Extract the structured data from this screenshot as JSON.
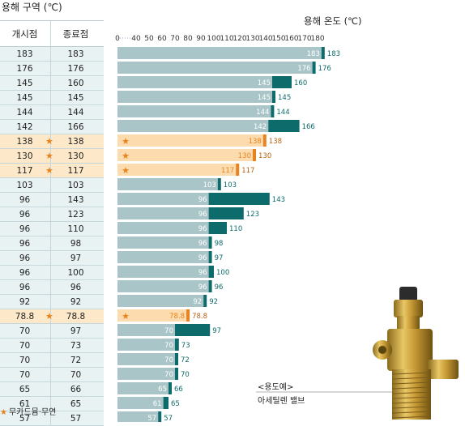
{
  "header": {
    "table_title": "용해 구역 (℃)"
  },
  "table": {
    "col_start": "개시점",
    "col_end": "종료점",
    "rows": [
      {
        "start": "183",
        "end": "183",
        "star": false
      },
      {
        "start": "176",
        "end": "176",
        "star": false
      },
      {
        "start": "145",
        "end": "160",
        "star": false
      },
      {
        "start": "145",
        "end": "145",
        "star": false
      },
      {
        "start": "144",
        "end": "144",
        "star": false
      },
      {
        "start": "142",
        "end": "166",
        "star": false
      },
      {
        "start": "138",
        "end": "138",
        "star": true
      },
      {
        "start": "130",
        "end": "130",
        "star": true
      },
      {
        "start": "117",
        "end": "117",
        "star": true
      },
      {
        "start": "103",
        "end": "103",
        "star": false
      },
      {
        "start": "96",
        "end": "143",
        "star": false
      },
      {
        "start": "96",
        "end": "123",
        "star": false
      },
      {
        "start": "96",
        "end": "110",
        "star": false
      },
      {
        "start": "96",
        "end": "98",
        "star": false
      },
      {
        "start": "96",
        "end": "97",
        "star": false
      },
      {
        "start": "96",
        "end": "100",
        "star": false
      },
      {
        "start": "96",
        "end": "96",
        "star": false
      },
      {
        "start": "92",
        "end": "92",
        "star": false
      },
      {
        "start": "78.8",
        "end": "78.8",
        "star": true
      },
      {
        "start": "70",
        "end": "97",
        "star": false
      },
      {
        "start": "70",
        "end": "73",
        "star": false
      },
      {
        "start": "70",
        "end": "72",
        "star": false
      },
      {
        "start": "70",
        "end": "70",
        "star": false
      },
      {
        "start": "65",
        "end": "66",
        "star": false
      },
      {
        "start": "61",
        "end": "65",
        "star": false
      },
      {
        "start": "57",
        "end": "57",
        "star": false
      }
    ]
  },
  "legend": {
    "star_symbol": "★",
    "text": "무카드뮴·무연"
  },
  "caption": {
    "line1": "<용도예>",
    "line2": "아세틸렌 밸브"
  },
  "colors": {
    "bar_normal": "#a9c5c8",
    "bar_highlight": "#fcdcae",
    "range_normal": "#0e6b6b",
    "range_highlight": "#e8831e",
    "star": "#e8831e"
  },
  "chart_data": {
    "type": "bar",
    "orientation": "horizontal",
    "title": "용해 온도 (℃)",
    "x_ticks": [
      "0",
      "40",
      "50",
      "60",
      "70",
      "80",
      "90",
      "100",
      "110",
      "120",
      "130",
      "140",
      "150",
      "160",
      "170",
      "180"
    ],
    "series": [
      {
        "start": 183,
        "end": 183,
        "start_label": "183",
        "end_label": "183",
        "star": false
      },
      {
        "start": 176,
        "end": 176,
        "start_label": "176",
        "end_label": "176",
        "star": false
      },
      {
        "start": 145,
        "end": 160,
        "start_label": "145",
        "end_label": "160",
        "star": false
      },
      {
        "start": 145,
        "end": 145,
        "start_label": "145",
        "end_label": "145",
        "star": false
      },
      {
        "start": 144,
        "end": 144,
        "start_label": "144",
        "end_label": "144",
        "star": false
      },
      {
        "start": 142,
        "end": 166,
        "start_label": "142",
        "end_label": "166",
        "star": false
      },
      {
        "start": 138,
        "end": 138,
        "start_label": "138",
        "end_label": "138",
        "star": true
      },
      {
        "start": 130,
        "end": 130,
        "start_label": "130",
        "end_label": "130",
        "star": true
      },
      {
        "start": 117,
        "end": 117,
        "start_label": "117",
        "end_label": "117",
        "star": true
      },
      {
        "start": 103,
        "end": 103,
        "start_label": "103",
        "end_label": "103",
        "star": false
      },
      {
        "start": 96,
        "end": 143,
        "start_label": "96",
        "end_label": "143",
        "star": false
      },
      {
        "start": 96,
        "end": 123,
        "start_label": "96",
        "end_label": "123",
        "star": false
      },
      {
        "start": 96,
        "end": 110,
        "start_label": "96",
        "end_label": "110",
        "star": false
      },
      {
        "start": 96,
        "end": 98,
        "start_label": "96",
        "end_label": "98",
        "star": false
      },
      {
        "start": 96,
        "end": 97,
        "start_label": "96",
        "end_label": "97",
        "star": false
      },
      {
        "start": 96,
        "end": 100,
        "start_label": "96",
        "end_label": "100",
        "star": false
      },
      {
        "start": 96,
        "end": 96,
        "start_label": "96",
        "end_label": "96",
        "star": false
      },
      {
        "start": 92,
        "end": 92,
        "start_label": "92",
        "end_label": "92",
        "star": false
      },
      {
        "start": 78.8,
        "end": 78.8,
        "start_label": "78.8",
        "end_label": "78.8",
        "star": true
      },
      {
        "start": 70,
        "end": 97,
        "start_label": "70",
        "end_label": "97",
        "star": false
      },
      {
        "start": 70,
        "end": 73,
        "start_label": "70",
        "end_label": "73",
        "star": false
      },
      {
        "start": 70,
        "end": 72,
        "start_label": "70",
        "end_label": "72",
        "star": false
      },
      {
        "start": 70,
        "end": 70,
        "start_label": "70",
        "end_label": "70",
        "star": false
      },
      {
        "start": 65,
        "end": 66,
        "start_label": "65",
        "end_label": "66",
        "star": false
      },
      {
        "start": 61,
        "end": 65,
        "start_label": "61",
        "end_label": "65",
        "star": false
      },
      {
        "start": 57,
        "end": 57,
        "start_label": "57",
        "end_label": "57",
        "star": false
      }
    ]
  }
}
